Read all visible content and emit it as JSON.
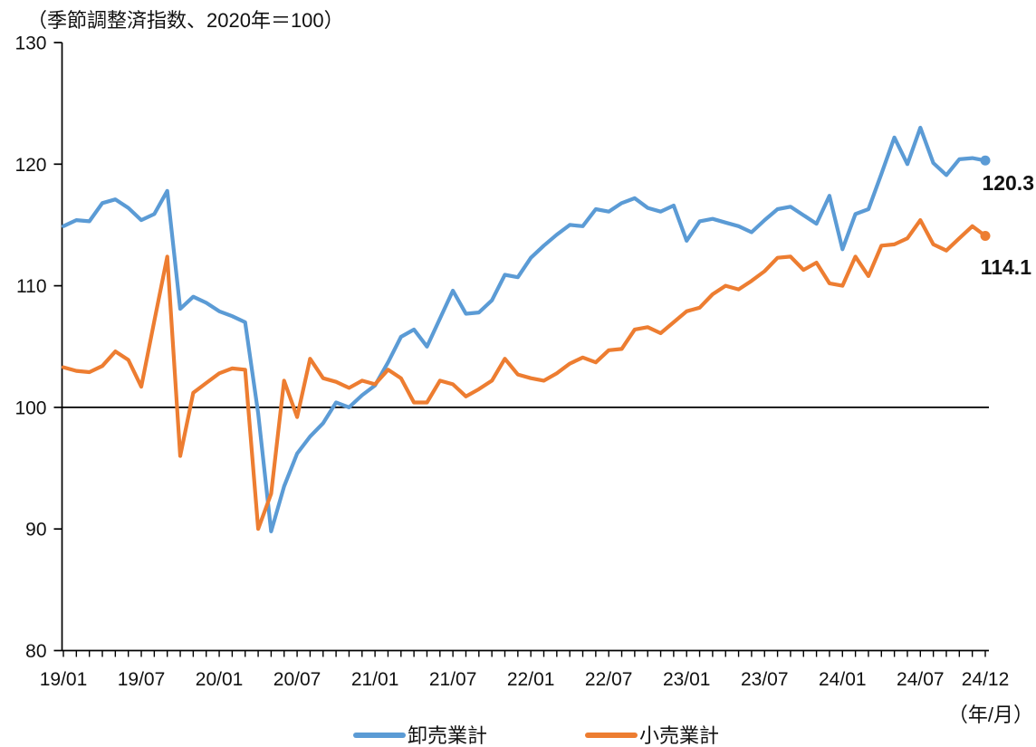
{
  "note": "（季節調整済指数、2020年＝100）",
  "axis_unit": "（年/月）",
  "end_labels": {
    "wholesale": "120.3",
    "retail": "114.1"
  },
  "chart_data": {
    "type": "line",
    "title": "（季節調整済指数、2020年＝100）",
    "x_start": "19/01",
    "x_end": "24/12",
    "x_tick_labels": [
      "19/01",
      "19/07",
      "20/01",
      "20/07",
      "21/01",
      "21/07",
      "22/01",
      "22/07",
      "23/01",
      "23/07",
      "24/01",
      "24/07",
      "24/12"
    ],
    "x_tick_month_indices": [
      0,
      6,
      12,
      18,
      24,
      30,
      36,
      42,
      48,
      54,
      60,
      66,
      71
    ],
    "y_ticks": [
      80,
      90,
      100,
      110,
      120,
      130
    ],
    "ylim": [
      80,
      130
    ],
    "reference_line_y": 100,
    "legend_position": "bottom",
    "grid": false,
    "series": [
      {
        "name": "卸売業計",
        "color": "#5B9BD5",
        "end_value_label": "120.3",
        "values": [
          114.9,
          115.4,
          115.3,
          116.8,
          117.1,
          116.4,
          115.4,
          115.9,
          117.8,
          108.1,
          109.1,
          108.6,
          107.9,
          107.5,
          107.0,
          99.5,
          89.8,
          93.5,
          96.2,
          97.6,
          98.7,
          100.4,
          100.0,
          101.0,
          101.8,
          103.7,
          105.8,
          106.4,
          105.0,
          107.3,
          109.6,
          107.7,
          107.8,
          108.8,
          110.9,
          110.7,
          112.3,
          113.3,
          114.2,
          115.0,
          114.9,
          116.3,
          116.1,
          116.8,
          117.2,
          116.4,
          116.1,
          116.6,
          113.7,
          115.3,
          115.5,
          115.2,
          114.9,
          114.4,
          115.4,
          116.3,
          116.5,
          115.8,
          115.1,
          117.4,
          113.0,
          115.9,
          116.3,
          119.2,
          122.2,
          120.0,
          123.0,
          120.1,
          119.1,
          120.4,
          120.5,
          120.3
        ]
      },
      {
        "name": "小売業計",
        "color": "#ED7D31",
        "end_value_label": "114.1",
        "values": [
          103.3,
          103.0,
          102.9,
          103.4,
          104.6,
          103.9,
          101.7,
          107.1,
          112.4,
          96.0,
          101.2,
          102.0,
          102.8,
          103.2,
          103.1,
          90.0,
          92.9,
          102.2,
          99.2,
          104.0,
          102.4,
          102.1,
          101.6,
          102.2,
          101.9,
          103.1,
          102.4,
          100.4,
          100.4,
          102.2,
          101.9,
          100.9,
          101.5,
          102.2,
          104.0,
          102.7,
          102.4,
          102.2,
          102.8,
          103.6,
          104.1,
          103.7,
          104.7,
          104.8,
          106.4,
          106.6,
          106.1,
          107.0,
          107.9,
          108.2,
          109.3,
          110.0,
          109.7,
          110.4,
          111.2,
          112.3,
          112.4,
          111.3,
          111.9,
          110.2,
          110.0,
          112.4,
          110.8,
          113.3,
          113.4,
          113.9,
          115.4,
          113.4,
          112.9,
          113.9,
          114.9,
          114.1
        ]
      }
    ]
  }
}
